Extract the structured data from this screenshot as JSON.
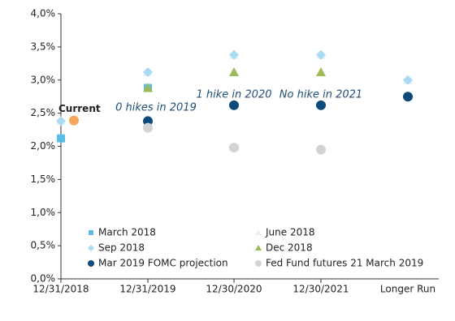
{
  "chart_data": {
    "type": "scatter",
    "categories": [
      "12/31/2018",
      "12/31/2019",
      "12/30/2020",
      "12/30/2021",
      "Longer Run"
    ],
    "ylim": [
      0,
      4
    ],
    "yticks": [
      {
        "value": 0,
        "label": "0,0%"
      },
      {
        "value": 0.5,
        "label": "0,5%"
      },
      {
        "value": 1,
        "label": "1,0%"
      },
      {
        "value": 1.5,
        "label": "1,5%"
      },
      {
        "value": 2,
        "label": "2,0%"
      },
      {
        "value": 2.5,
        "label": "2,5%"
      },
      {
        "value": 3,
        "label": "3,0%"
      },
      {
        "value": 3.5,
        "label": "3,5%"
      },
      {
        "value": 4,
        "label": "4,0%"
      }
    ],
    "grid": false,
    "series": [
      {
        "name": "March 2018",
        "color": "#5bbde4",
        "marker": "square",
        "values": [
          2.12,
          2.88,
          null,
          null,
          null
        ]
      },
      {
        "name": "June 2018",
        "color": "#e3f2fa",
        "marker": "triangle",
        "values": [
          2.38,
          3.12,
          3.38,
          3.38,
          3.0
        ]
      },
      {
        "name": "Sep 2018",
        "color": "#a9daf2",
        "marker": "diamond",
        "values": [
          2.38,
          3.12,
          3.38,
          3.38,
          3.0
        ]
      },
      {
        "name": "Dec 2018",
        "color": "#9bbb59",
        "marker": "triangle",
        "values": [
          null,
          2.88,
          3.12,
          3.12,
          null
        ]
      },
      {
        "name": "Mar 2019 FOMC projection",
        "color": "#0d4a7a",
        "marker": "circle",
        "values": [
          null,
          2.38,
          2.62,
          2.62,
          2.75
        ]
      },
      {
        "name": "Fed Fund futures 21 March 2019",
        "color": "#d3d3d3",
        "marker": "circle",
        "values": [
          null,
          2.28,
          1.98,
          1.95,
          null
        ]
      }
    ],
    "current": {
      "label": "Current",
      "value": 2.39,
      "color": "#f5a65b"
    },
    "annotations": [
      "0 hikes in 2019",
      "1 hike in 2020",
      "No hike in 2021"
    ]
  }
}
